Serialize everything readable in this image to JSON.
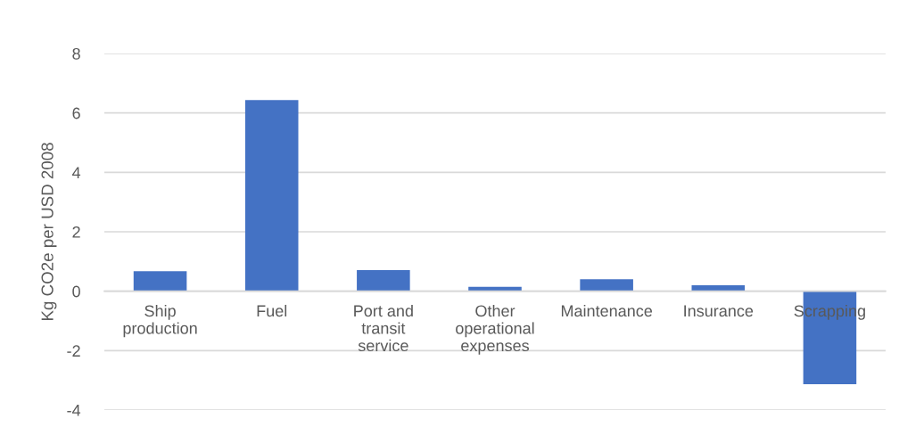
{
  "chart_data": {
    "type": "bar",
    "ylabel": "Kg CO2e per USD 2008",
    "categories": [
      "Ship\nproduction",
      "Fuel",
      "Port and\ntransit\nservice",
      "Other\noperational\nexpenses",
      "Maintenance",
      "Insurance",
      "Scrapping"
    ],
    "values": [
      0.67,
      6.43,
      0.71,
      0.15,
      0.4,
      0.2,
      -3.13
    ],
    "color": "#4472c4",
    "ylim": [
      -4,
      8
    ],
    "yticks": [
      -4,
      -2,
      0,
      2,
      4,
      6,
      8
    ],
    "grid": "y"
  }
}
